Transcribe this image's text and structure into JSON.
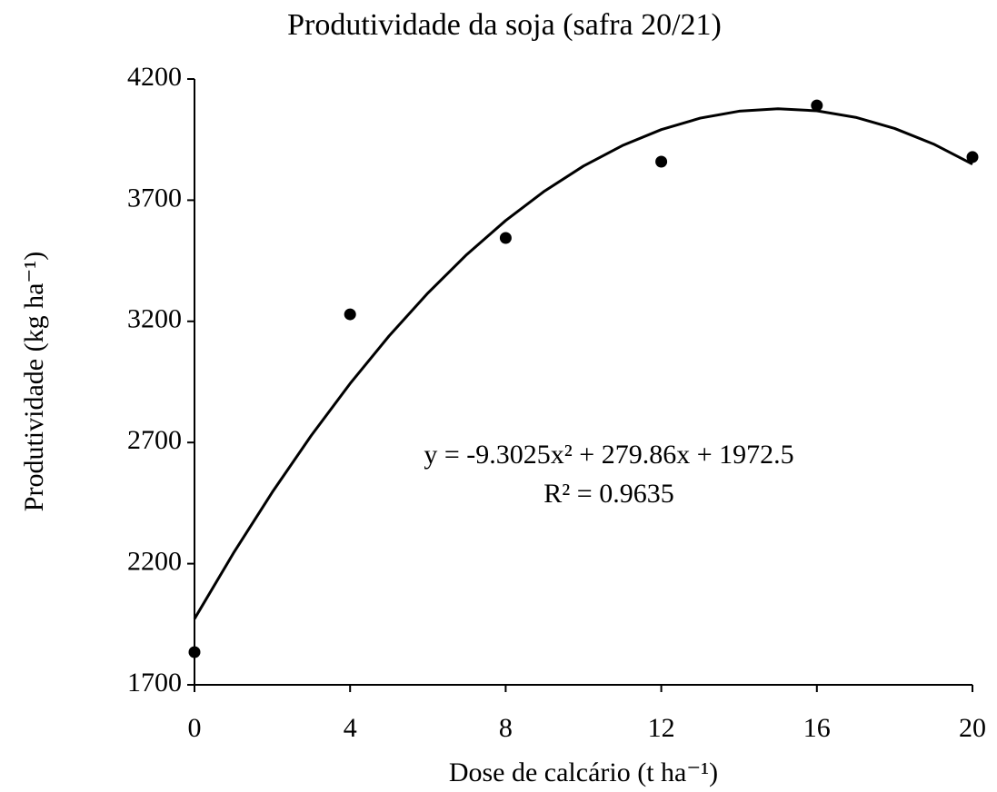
{
  "chart_data": {
    "type": "scatter",
    "title": "Produtividade da soja (safra 20/21)",
    "x_label": "Dose de calcário (t ha⁻¹)",
    "y_label": "Produtividade (kg ha⁻¹)",
    "x": [
      0,
      4,
      8,
      12,
      16,
      20
    ],
    "values": [
      1835,
      3229,
      3544,
      3859,
      4091,
      3878
    ],
    "color": "#000000",
    "xlim": [
      0,
      20
    ],
    "xticks": [
      0,
      4,
      8,
      12,
      16,
      20
    ],
    "ylim": [
      1700,
      4200
    ],
    "yticks": [
      1700,
      2200,
      2700,
      3200,
      3700,
      4200
    ],
    "grid": false,
    "trendline": {
      "x": [
        0,
        1,
        2,
        3,
        4,
        5,
        6,
        7,
        8,
        9,
        10,
        11,
        12,
        13,
        14,
        15,
        16,
        17,
        18,
        19,
        20
      ],
      "values": [
        1972.5,
        2243.06,
        2495.01,
        2728.36,
        2943.1,
        3139.24,
        3316.77,
        3475.7,
        3616.02,
        3737.74,
        3840.85,
        3925.36,
        3991.26,
        4038.56,
        4067.25,
        4077.34,
        4068.82,
        4041.7,
        3995.97,
        3931.64,
        3848.7
      ],
      "color": "#000000",
      "equation": "y = -9.3025x² + 279.86x + 1972.5",
      "r_squared": "R² = 0.9635"
    }
  }
}
